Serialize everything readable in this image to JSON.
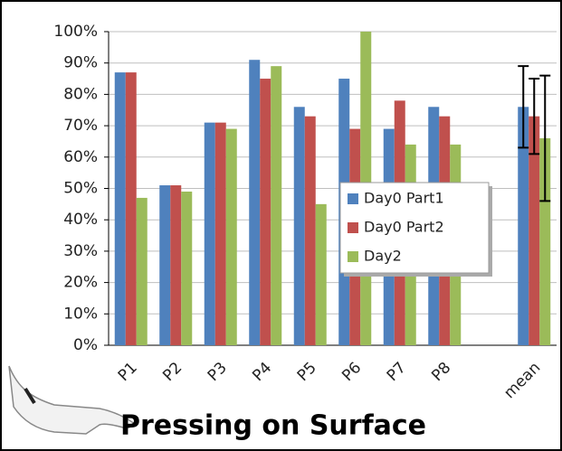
{
  "chart_data": {
    "type": "bar",
    "title": "Pressing on Surface",
    "categories": [
      "P1",
      "P2",
      "P3",
      "P4",
      "P5",
      "P6",
      "P7",
      "P8",
      null,
      "mean"
    ],
    "series": [
      {
        "name": "Day0 Part1",
        "color": "#4f81bd",
        "values": [
          87,
          51,
          71,
          91,
          76,
          85,
          69,
          76,
          null,
          76
        ],
        "errors": [
          null,
          null,
          null,
          null,
          null,
          null,
          null,
          null,
          null,
          13
        ]
      },
      {
        "name": "Day0 Part2",
        "color": "#c0504d",
        "values": [
          87,
          51,
          71,
          85,
          73,
          69,
          78,
          73,
          null,
          73
        ],
        "errors": [
          null,
          null,
          null,
          null,
          null,
          null,
          null,
          null,
          null,
          12
        ]
      },
      {
        "name": "Day2",
        "color": "#9bbb59",
        "values": [
          47,
          49,
          69,
          89,
          45,
          100,
          64,
          64,
          null,
          66
        ],
        "errors": [
          null,
          null,
          null,
          null,
          null,
          null,
          null,
          null,
          null,
          20
        ]
      }
    ],
    "ylim": [
      0,
      100
    ],
    "yticks": [
      {
        "value": 0,
        "label": "0%"
      },
      {
        "value": 10,
        "label": "10%"
      },
      {
        "value": 20,
        "label": "20%"
      },
      {
        "value": 30,
        "label": "30%"
      },
      {
        "value": 40,
        "label": "40%"
      },
      {
        "value": 50,
        "label": "50%"
      },
      {
        "value": 60,
        "label": "60%"
      },
      {
        "value": 70,
        "label": "70%"
      },
      {
        "value": 80,
        "label": "80%"
      },
      {
        "value": 90,
        "label": "90%"
      },
      {
        "value": 100,
        "label": "100%"
      }
    ],
    "grid": true
  }
}
